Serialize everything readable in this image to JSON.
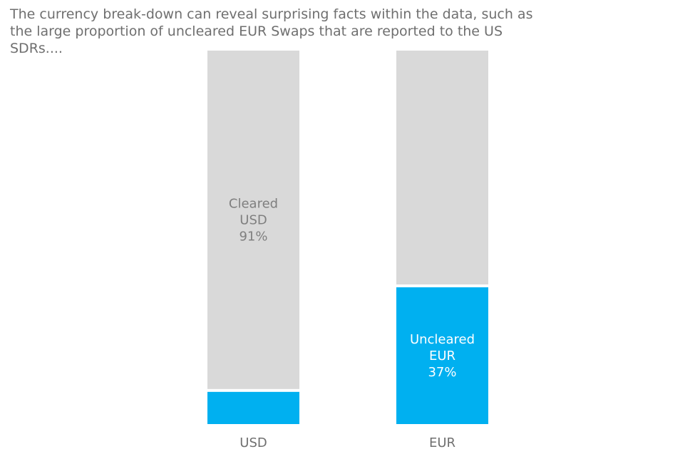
{
  "caption": "The currency break-down can reveal surprising facts within the data, such as the large proportion of uncleared EUR Swaps that are reported to the US SDRs....",
  "colors": {
    "cleared": "#d9d9d9",
    "uncleared": "#00b0f0",
    "cleared_text": "#7f7f7f",
    "uncleared_text": "#ffffff",
    "axis_text": "#6f6f6f"
  },
  "chart_data": {
    "type": "bar",
    "stacked": true,
    "normalized": true,
    "categories": [
      "USD",
      "EUR"
    ],
    "series": [
      {
        "name": "Uncleared",
        "values": [
          9,
          37
        ]
      },
      {
        "name": "Cleared",
        "values": [
          91,
          63
        ]
      }
    ],
    "data_labels": [
      {
        "category": "USD",
        "series": "Cleared",
        "lines": [
          "Cleared",
          "USD",
          "91%"
        ]
      },
      {
        "category": "EUR",
        "series": "Uncleared",
        "lines": [
          "Uncleared",
          "EUR",
          "37%"
        ]
      }
    ],
    "ylim": [
      0,
      100
    ],
    "grid": false,
    "legend": "none"
  }
}
